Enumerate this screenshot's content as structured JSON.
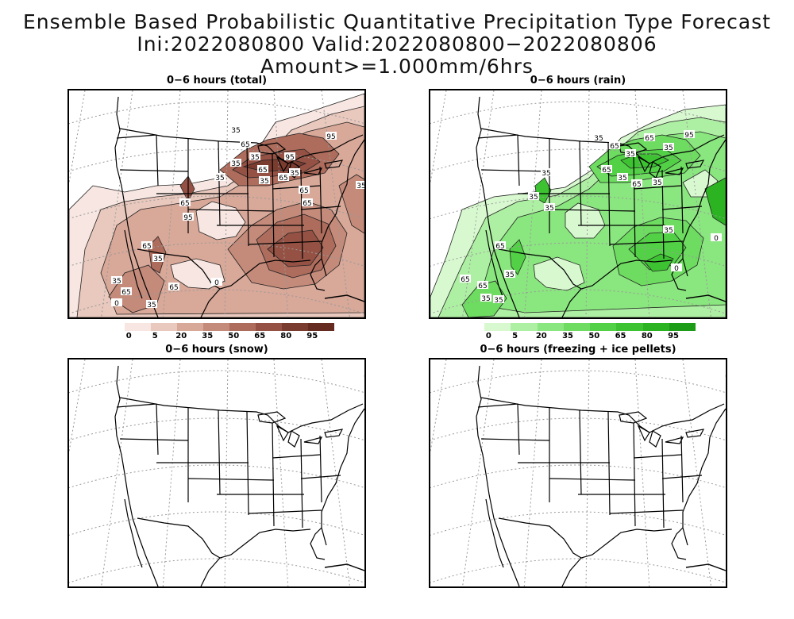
{
  "title": {
    "line1": "Ensemble Based Probabilistic Quantitative Precipitation Type Forecast",
    "line2": "Ini:2022080800 Valid:2022080800−2022080806 Amount>=1.000mm/6hrs"
  },
  "panels": [
    {
      "title": "0−6 hours (total)"
    },
    {
      "title": "0−6 hours (rain)"
    },
    {
      "title": "0−6 hours (snow)"
    },
    {
      "title": "0−6 hours (freezing + ice pellets)"
    }
  ],
  "colorbars": {
    "labels": [
      "0",
      "5",
      "20",
      "35",
      "50",
      "65",
      "80",
      "95"
    ],
    "total_colors": [
      "#f7e6e1",
      "#e9c8bd",
      "#d8a899",
      "#c48a7a",
      "#ad6c5c",
      "#955244",
      "#7b3c30",
      "#652b21"
    ],
    "rain_colors": [
      "#d8f9d0",
      "#aef0a3",
      "#8ae67f",
      "#6ddc60",
      "#52d146",
      "#3dc332",
      "#2bb322",
      "#1d9c17"
    ]
  },
  "contour_labels": {
    "total": [
      "35",
      "65",
      "35",
      "35",
      "65",
      "95",
      "35",
      "65",
      "35",
      "65",
      "65",
      "35",
      "65",
      "95",
      "65",
      "35",
      "65",
      "35",
      "65",
      "35",
      "0",
      "0",
      "95",
      "35"
    ],
    "rain": [
      "35",
      "65",
      "35",
      "65",
      "35",
      "95",
      "65",
      "35",
      "65",
      "35",
      "35",
      "35",
      "35",
      "65",
      "35",
      "35",
      "65",
      "35",
      "0",
      "0",
      "65",
      "35"
    ]
  }
}
